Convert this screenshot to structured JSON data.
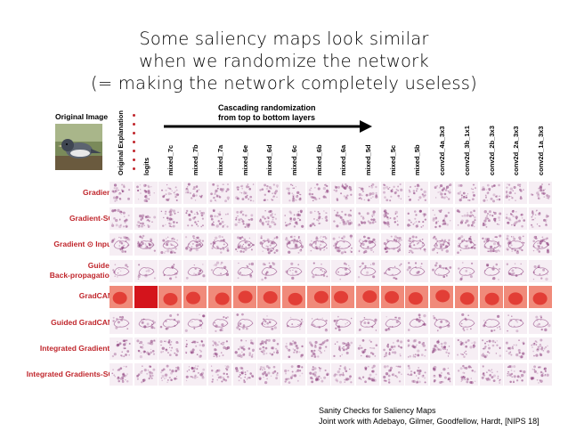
{
  "title_lines": [
    "Some saliency maps look similar",
    "when we randomize the network",
    "(= making the network completely useless)"
  ],
  "original_image_label": "Original Image",
  "cascade_label_lines": [
    "Cascading randomization",
    "from top to bottom layers"
  ],
  "columns": [
    "Original Explanation",
    "logits",
    "mixed_7c",
    "mixed_7b",
    "mixed_7a",
    "mixed_6e",
    "mixed_6d",
    "mixed_6c",
    "mixed_6b",
    "mixed_6a",
    "mixed_5d",
    "mixed_5c",
    "mixed_5b",
    "conv2d_4a_3x3",
    "conv2d_3b_1x1",
    "conv2d_2b_3x3",
    "conv2d_2a_3x3",
    "conv2d_1a_3x3"
  ],
  "rows": [
    {
      "label_lines": [
        "Gradient"
      ],
      "style": "purple"
    },
    {
      "label_lines": [
        "Gradient-SG"
      ],
      "style": "purple"
    },
    {
      "label_lines": [
        "Gradient ⊙ Input"
      ],
      "style": "purple"
    },
    {
      "label_lines": [
        "Guided",
        "Back-propagation"
      ],
      "style": "outline"
    },
    {
      "label_lines": [
        "GradCAM"
      ],
      "style": "red"
    },
    {
      "label_lines": [
        "Guided GradCAM"
      ],
      "style": "outline"
    },
    {
      "label_lines": [
        "Integrated Gradients"
      ],
      "style": "purple"
    },
    {
      "label_lines": [
        "Integrated Gradients-SG"
      ],
      "style": "purple"
    }
  ],
  "colors": {
    "label_red": "#c0262c",
    "heat_red": "#e0352f",
    "saliency_purple": "#8a3a7a"
  },
  "footer_lines": [
    "Sanity Checks for Saliency Maps",
    "Joint work with Adebayo, Gilmer, Goodfellow, Hardt, [NIPS 18]"
  ]
}
